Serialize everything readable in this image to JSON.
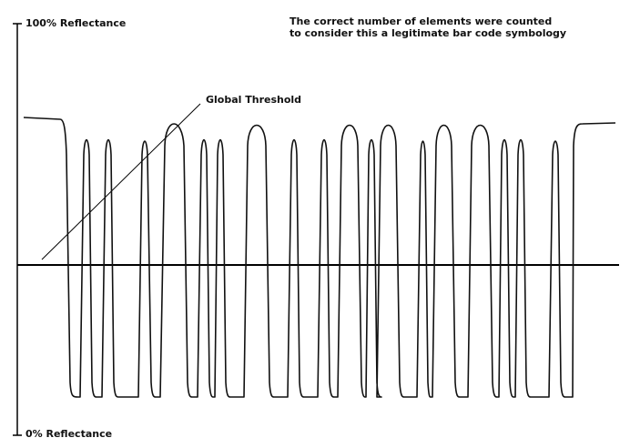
{
  "labels": {
    "top_axis": "100% Reflectance",
    "bottom_axis": "0% Reflectance",
    "threshold": "Global Threshold",
    "note_line1": "The correct number of elements were counted",
    "note_line2": "to consider this a legitimate bar code symbology"
  },
  "colors": {
    "trace": "#111111",
    "threshold": "#000000",
    "axis": "#000000"
  }
}
